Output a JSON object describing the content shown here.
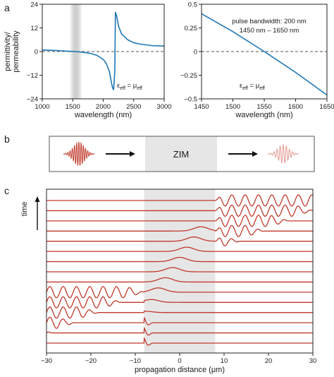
{
  "panels": {
    "a_label": "a",
    "b_label": "b",
    "c_label": "c"
  },
  "colors": {
    "line_blue": "#1f77b4",
    "wave_red": "#c0392b",
    "shade_gray": "#d0d0d0",
    "zim_gray": "#e6e6e6"
  },
  "chart_data": [
    {
      "type": "line",
      "xlabel": "wavelength (nm)",
      "ylabel_lines": [
        "permittivity/",
        "permeability"
      ],
      "xlim": [
        1000,
        3000
      ],
      "ylim": [
        -24,
        24
      ],
      "xticks": [
        "1000",
        "1500",
        "2000",
        "2500",
        "3000"
      ],
      "yticks": [
        "24",
        "12",
        "0",
        "−12",
        "−24"
      ],
      "shaded_band_nm": [
        1450,
        1650
      ],
      "zero_line": "dashed",
      "annotation": {
        "main": "ε",
        "sub1": "eff",
        "mid": " = μ",
        "sub2": "eff"
      },
      "series": [
        {
          "x": [
            1000,
            1100,
            1200,
            1300,
            1400,
            1500,
            1550,
            1600,
            1700,
            1800,
            1900,
            2000,
            2050,
            2100,
            2130,
            2150,
            2170,
            2190,
            2200,
            2220,
            2250,
            2300,
            2400,
            2500,
            2600,
            2800,
            3000
          ],
          "y": [
            0.8,
            0.7,
            0.55,
            0.4,
            0.2,
            0.05,
            0,
            -0.15,
            -0.5,
            -1.0,
            -2.0,
            -4.0,
            -6.0,
            -10.0,
            -15.0,
            -18.0,
            -19.5,
            -10.0,
            20.0,
            18.0,
            13.0,
            9.0,
            6.0,
            4.5,
            3.8,
            3.0,
            2.8
          ]
        }
      ]
    },
    {
      "type": "line",
      "xlabel": "wavelength (nm)",
      "xlim": [
        1450,
        1650
      ],
      "ylim": [
        -0.5,
        0.5
      ],
      "xticks": [
        "1450",
        "1500",
        "1550",
        "1600",
        "1650"
      ],
      "yticks": [
        "0.5",
        "0.25",
        "0",
        "−0.25",
        "−0.5"
      ],
      "zero_line": "dashed",
      "text_lines": [
        "pulse bandwidth: 200 nm",
        "1450 nm – 1650 nm"
      ],
      "annotation": {
        "main": "ε",
        "sub1": "eff",
        "mid": " = μ",
        "sub2": "eff"
      },
      "series": [
        {
          "x": [
            1450,
            1500,
            1550,
            1600,
            1650
          ],
          "y": [
            0.4,
            0.21,
            0.0,
            -0.22,
            -0.46
          ]
        }
      ]
    },
    {
      "type": "line",
      "xlabel": "propagation distance (μm)",
      "ylabel": "time",
      "xlim": [
        -30,
        30
      ],
      "xticks": [
        "−30",
        "−20",
        "−10",
        "0",
        "10",
        "20",
        "30"
      ],
      "zim_region_um": [
        -8,
        8
      ],
      "traces": 15
    }
  ],
  "diagram_b": {
    "zim_label": "ZIM"
  }
}
